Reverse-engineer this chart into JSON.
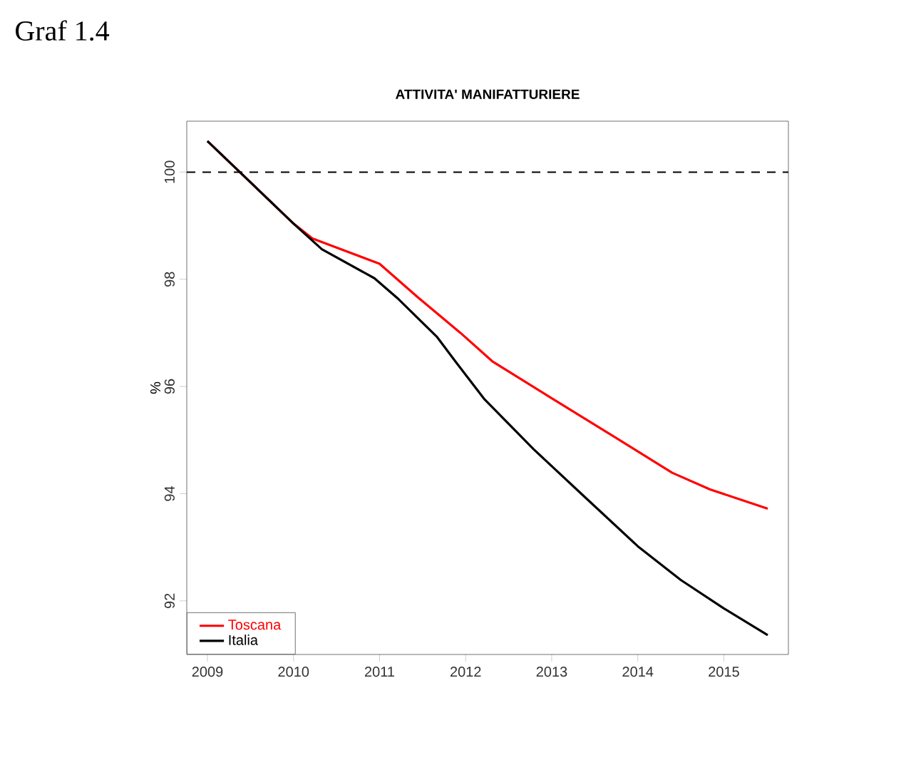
{
  "chart_data": {
    "type": "line",
    "title": "ATTIVITA' MANIFATTURIERE",
    "ylabel": "%",
    "annotations": [
      "Graf 1.4"
    ],
    "xlim": [
      2008.76,
      2015.75
    ],
    "ylim": [
      91.0,
      100.95
    ],
    "xticks": [
      2009,
      2010,
      2011,
      2012,
      2013,
      2014,
      2015
    ],
    "yticks": [
      92,
      94,
      96,
      98,
      100
    ],
    "ref_lines": [
      {
        "axis": "y",
        "value": 100,
        "color": "#000000",
        "line_style": "dashed"
      }
    ],
    "legend": "bottom left",
    "grid": false,
    "series": [
      {
        "name": "Toscana",
        "color": "#ff0000",
        "x": [
          2009,
          2010,
          2010.22,
          2011,
          2011.44,
          2011.94,
          2012.31,
          2012.97,
          2013.74,
          2014.4,
          2014.84,
          2015.51
        ],
        "values": [
          100.58,
          99.04,
          98.76,
          98.29,
          97.67,
          97.0,
          96.47,
          95.81,
          95.05,
          94.39,
          94.08,
          93.72
        ]
      },
      {
        "name": "Italia",
        "color": "#000000",
        "x": [
          2009,
          2010,
          2010.33,
          2010.94,
          2011.22,
          2011.67,
          2011.88,
          2012.22,
          2012.79,
          2013.35,
          2014.0,
          2014.5,
          2015.0,
          2015.51
        ],
        "values": [
          100.58,
          99.04,
          98.56,
          98.02,
          97.63,
          96.92,
          96.47,
          95.76,
          94.83,
          93.99,
          93.02,
          92.39,
          91.86,
          91.36
        ]
      }
    ]
  }
}
